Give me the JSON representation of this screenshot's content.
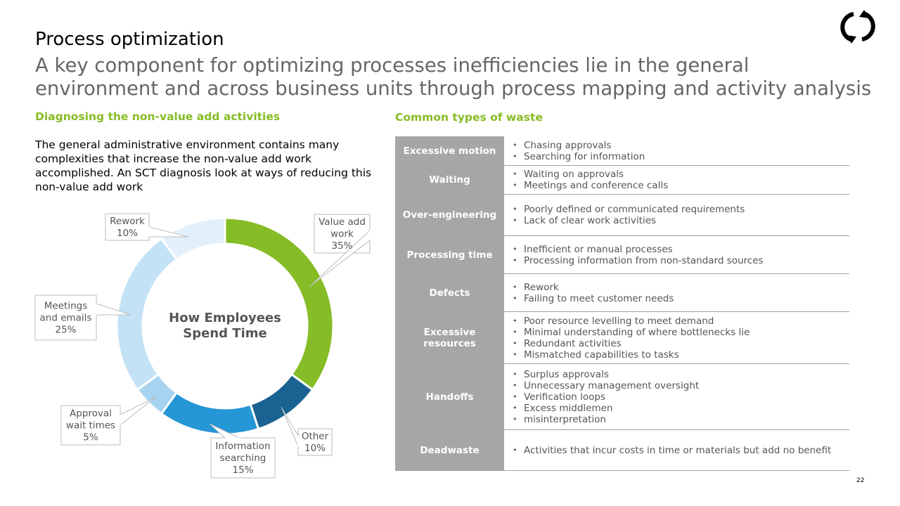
{
  "header": {
    "title": "Process optimization",
    "subtitle": "A key component for optimizing processes inefficiencies lie in the general environment and across business units through process mapping and activity analysis"
  },
  "left": {
    "heading": "Diagnosing the non-value add activities",
    "intro": "The general administrative environment contains many complexities that increase the non-value add work accomplished. An SCT diagnosis look at ways of reducing this non-value add work"
  },
  "chart_data": {
    "type": "pie",
    "title": "How Employees Spend Time",
    "categories": [
      "Value add work",
      "Other",
      "Information searching",
      "Approval wait times",
      "Meetings and emails",
      "Rework"
    ],
    "values": [
      35,
      10,
      15,
      5,
      25,
      10
    ],
    "unit": "%",
    "colors": [
      "#86bc25",
      "#1a6291",
      "#2596d6",
      "#a6d3f0",
      "#c3e2f6",
      "#e1f0fb"
    ],
    "callouts": [
      {
        "lines": [
          "Value add",
          "work",
          "35%"
        ]
      },
      {
        "lines": [
          "Other",
          "10%"
        ]
      },
      {
        "lines": [
          "Information",
          "searching",
          "15%"
        ]
      },
      {
        "lines": [
          "Approval",
          "wait times",
          "5%"
        ]
      },
      {
        "lines": [
          "Meetings",
          "and emails",
          "25%"
        ]
      },
      {
        "lines": [
          "Rework",
          "10%"
        ]
      }
    ],
    "center_label": [
      "How Employees",
      "Spend Time"
    ]
  },
  "right": {
    "heading": "Common types of waste",
    "rows": [
      {
        "label": "Excessive motion",
        "items": [
          "Chasing approvals",
          "Searching for information"
        ]
      },
      {
        "label": "Waiting",
        "items": [
          "Waiting on approvals",
          "Meetings and conference calls"
        ]
      },
      {
        "label": "Over-engineering",
        "items": [
          "Poorly defined or communicated requirements",
          "Lack of clear work activities"
        ]
      },
      {
        "label": "Processing time",
        "items": [
          "Inefficient or manual processes",
          "Processing information from non-standard sources"
        ]
      },
      {
        "label": "Defects",
        "items": [
          "Rework",
          "Failing to meet customer needs"
        ]
      },
      {
        "label": "Excessive resources",
        "items": [
          "Poor resource levelling to meet demand",
          "Minimal understanding of where bottlenecks lie",
          "Redundant activities",
          "Mismatched capabilities to tasks"
        ]
      },
      {
        "label": "Handoffs",
        "items": [
          "Surplus approvals",
          "Unnecessary management oversight",
          "Verification loops",
          "Excess middlemen",
          "misinterpretation"
        ]
      },
      {
        "label": "Deadwaste",
        "items": [
          "Activities that incur costs in time or materials but add no benefit"
        ]
      }
    ]
  },
  "footer": {
    "page_number": "22"
  }
}
